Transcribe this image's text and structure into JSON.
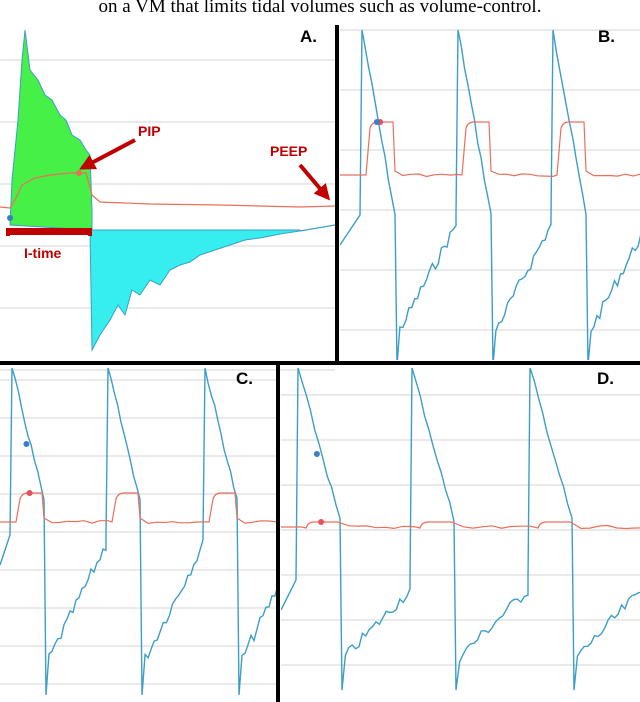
{
  "caption": "on a VM that limits tidal volumes such as volume-control.",
  "panels": [
    {
      "label": "A."
    },
    {
      "label": "B."
    },
    {
      "label": "C."
    },
    {
      "label": "D."
    }
  ],
  "annotations": {
    "pip": "PIP",
    "peep": "PEEP",
    "itime": "I-time"
  }
}
